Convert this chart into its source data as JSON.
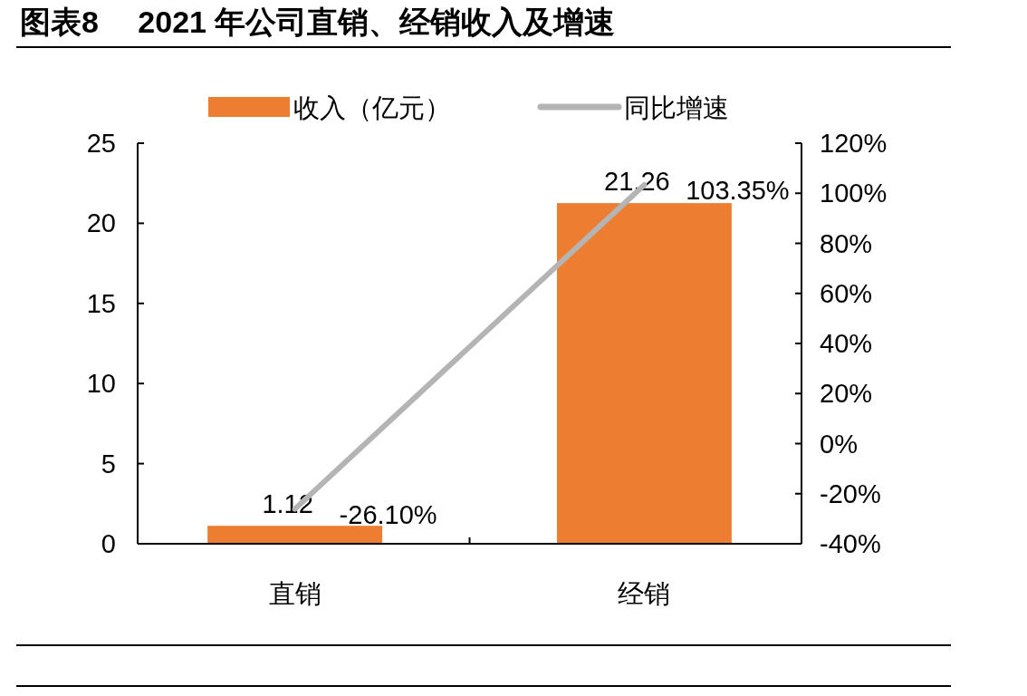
{
  "chart_data": {
    "type": "bar",
    "title": "图表8　 2021 年公司直销、经销收入及增速",
    "categories": [
      "直销",
      "经销"
    ],
    "series": [
      {
        "name": "收入（亿元）",
        "color": "#ed7d31",
        "values": [
          1.12,
          21.26
        ],
        "value_labels": [
          "1.12",
          "21.26"
        ]
      },
      {
        "name": "同比增速",
        "type": "line",
        "axis": "y2",
        "color": "#b4b4b4",
        "values": [
          -26.1,
          103.35
        ],
        "value_labels": [
          "-26.10%",
          "103.35%"
        ]
      }
    ],
    "ylim": [
      0,
      25
    ],
    "yticks": [
      0,
      5,
      10,
      15,
      20,
      25
    ],
    "y2lim": [
      -40,
      120
    ],
    "y2ticks": [
      {
        "value": -40,
        "label": "-40%"
      },
      {
        "value": -20,
        "label": "-20%"
      },
      {
        "value": 0,
        "label": "0%"
      },
      {
        "value": 20,
        "label": "20%"
      },
      {
        "value": 40,
        "label": "40%"
      },
      {
        "value": 60,
        "label": "60%"
      },
      {
        "value": 80,
        "label": "80%"
      },
      {
        "value": 100,
        "label": "100%"
      },
      {
        "value": 120,
        "label": "120%"
      }
    ],
    "legend": "top",
    "grid": false,
    "marker": "none"
  }
}
